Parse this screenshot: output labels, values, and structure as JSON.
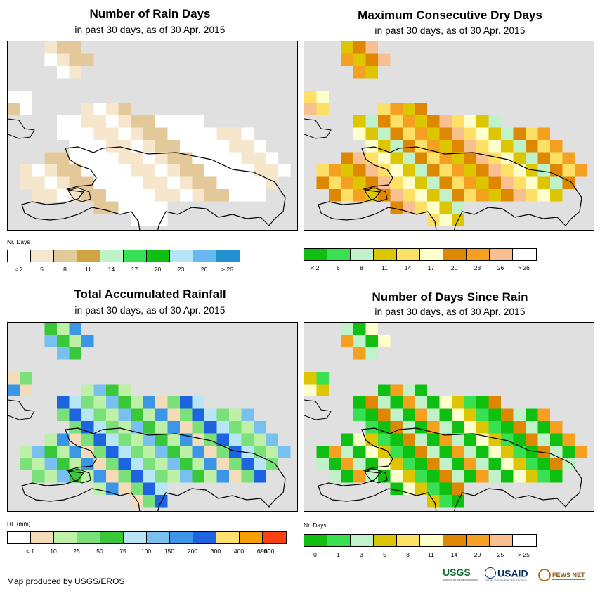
{
  "panels": [
    {
      "title": "Number of Rain Days",
      "subtitle": "in past 30 days, as of 30 Apr. 2015",
      "legend_title": "Nr. Days",
      "legend_colors": [
        "#ffffff",
        "#f5e6cc",
        "#e3c99a",
        "#cfa440",
        "#bff2c8",
        "#38e052",
        "#10c010",
        "#b8e6f5",
        "#6ab8f0",
        "#2090d0"
      ],
      "tick_labels": [
        "< 2",
        "5",
        "8",
        "11",
        "14",
        "17",
        "20",
        "23",
        "26",
        "> 26"
      ]
    },
    {
      "title": "Maximum Consecutive Dry Days",
      "subtitle": "in past 30 days, as of 30 Apr. 2015",
      "legend_title": "",
      "legend_colors": [
        "#10c010",
        "#38e052",
        "#bff2c8",
        "#ddc600",
        "#ffe066",
        "#ffffcc",
        "#dd8800",
        "#f5a020",
        "#f8c090",
        "#ffffff"
      ],
      "tick_labels": [
        "< 2",
        "5",
        "8",
        "11",
        "14",
        "17",
        "20",
        "23",
        "26",
        "> 26"
      ]
    },
    {
      "title": "Total Accumulated Rainfall",
      "subtitle": "in past 30 days, as of 30 Apr. 2015",
      "legend_title": "RF (mm)",
      "legend_colors": [
        "#ffffff",
        "#f5dcb8",
        "#bef0a8",
        "#7ae07a",
        "#38c838",
        "#b8e6f5",
        "#78c0f0",
        "#3c96e8",
        "#1e64e0",
        "#ffe070",
        "#f5a000",
        "#ff4010"
      ],
      "tick_labels": [
        "< 1",
        "10",
        "25",
        "50",
        "75",
        "100",
        "150",
        "200",
        "300",
        "400",
        "600",
        "> 600"
      ]
    },
    {
      "title": "Number of Days Since Rain",
      "subtitle": "in past 30 days, as of 30 Apr. 2015",
      "legend_title": "Nr. Days",
      "legend_colors": [
        "#10c010",
        "#38e052",
        "#bff2c8",
        "#ddc600",
        "#ffe066",
        "#ffffcc",
        "#dd8800",
        "#f5a020",
        "#f8c090",
        "#ffffff"
      ],
      "tick_labels": [
        "0",
        "1",
        "3",
        "5",
        "8",
        "11",
        "14",
        "20",
        "25",
        "> 25"
      ]
    }
  ],
  "footer": {
    "credit": "Map produced by USGS/EROS",
    "logo_usgs": "USGS",
    "logo_usgs_tagline": "science for a changing world",
    "logo_usaid": "USAID",
    "logo_usaid_tagline": "FROM THE AMERICAN PEOPLE",
    "logo_fews": "FEWS NET"
  }
}
